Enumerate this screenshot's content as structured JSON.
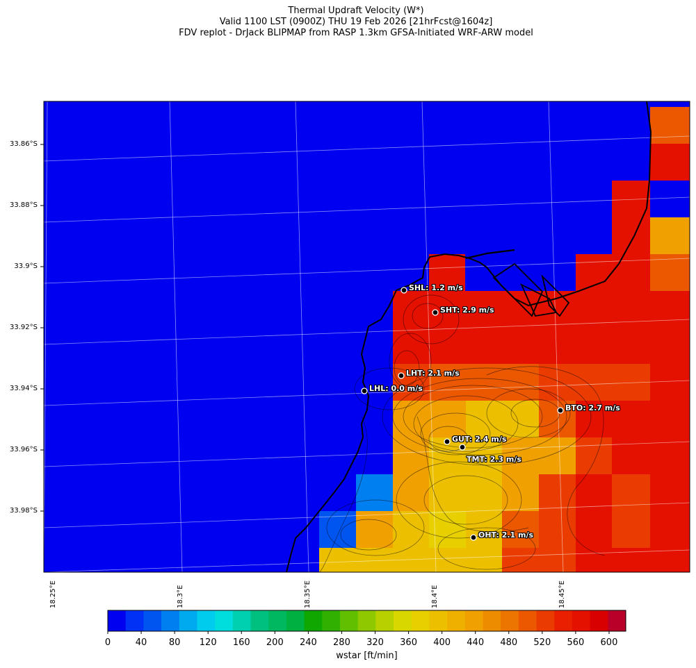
{
  "title": {
    "line1": "Thermal Updraft Velocity (W*)",
    "line2": "Valid 1100 LST (0900Z) THU 19 Feb 2026 [21hrFcst@1604z]",
    "line3": "FDV replot - DrJack BLIPMAP from RASP 1.3km GFSA-Initiated WRF-ARW model"
  },
  "lat_labels": [
    "33.86°S",
    "33.88°S",
    "33.9°S",
    "33.92°S",
    "33.94°S",
    "33.96°S",
    "33.98°S"
  ],
  "lon_labels": [
    "18.25°E",
    "18.3°E",
    "18.35°E",
    "18.4°E",
    "18.45°E"
  ],
  "colorbar": {
    "label": "wstar [ft/min]",
    "ticks": [
      "0",
      "40",
      "80",
      "120",
      "160",
      "200",
      "240",
      "280",
      "320",
      "360",
      "400",
      "440",
      "480",
      "520",
      "560",
      "600"
    ],
    "colors": [
      "#0000f0",
      "#0032f5",
      "#0055f0",
      "#0080f0",
      "#00aaee",
      "#00ccee",
      "#00dddd",
      "#00d0b0",
      "#00c080",
      "#00b860",
      "#00b040",
      "#10a800",
      "#30b000",
      "#60c000",
      "#90c800",
      "#b8d000",
      "#d8d800",
      "#e8d000",
      "#ecc000",
      "#f0b000",
      "#f0a000",
      "#ee8c00",
      "#ec7400",
      "#ec5800",
      "#ea3c00",
      "#e82000",
      "#e41000",
      "#d80000",
      "#b80028"
    ]
  },
  "stations": [
    {
      "code": "SHL",
      "label": "SHL: 1.2 m/s",
      "wstar_ms": 1.2
    },
    {
      "code": "SHT",
      "label": "SHT: 2.9 m/s",
      "wstar_ms": 2.9
    },
    {
      "code": "LHT",
      "label": "LHT: 2.1 m/s",
      "wstar_ms": 2.1
    },
    {
      "code": "LHL",
      "label": "LHL: 0.0 m/s",
      "wstar_ms": 0.0
    },
    {
      "code": "BTO",
      "label": "BTO: 2.7 m/s",
      "wstar_ms": 2.7
    },
    {
      "code": "GUT",
      "label": "GUT: 2.4 m/s",
      "wstar_ms": 2.4
    },
    {
      "code": "TMT",
      "label": "TMT: 2.3 m/s",
      "wstar_ms": 2.3
    },
    {
      "code": "OHT",
      "label": "OHT: 2.1 m/s",
      "wstar_ms": 2.1
    }
  ],
  "field_colors": {
    "sea": "#0000f0",
    "red": "#e41000",
    "red_orange": "#ea3c00",
    "orange": "#ec5800",
    "amber": "#f0a000",
    "gold": "#ecc000",
    "yellow": "#e8d000",
    "light_blue": "#0080f0",
    "blue2": "#0055f0"
  }
}
